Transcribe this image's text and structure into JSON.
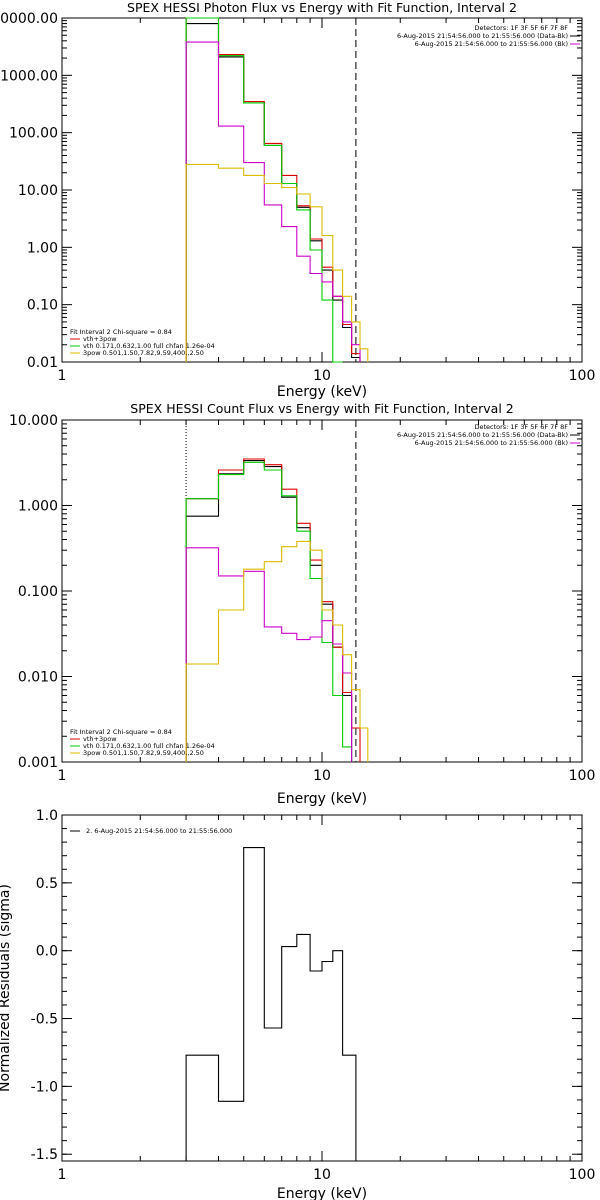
{
  "chart_data": [
    {
      "type": "line",
      "title": "SPEX HESSI Photon Flux vs Energy with Fit Function, Interval 2",
      "xlabel": "Energy (keV)",
      "ylabel": "",
      "x_scale": "log",
      "y_scale": "log",
      "xlim": [
        1,
        100
      ],
      "ylim": [
        0.01,
        10000
      ],
      "x_ticks": [
        "1",
        "10",
        "100"
      ],
      "y_ticks": [
        "0.01",
        "0.10",
        "1.00",
        "10.00",
        "100.00",
        "1000.00",
        "10000.00"
      ],
      "fit_range_lines": [
        3,
        13.5
      ],
      "info_lines": [
        "Detectors: 1F 3F 5F 6F 7F 8F",
        "6-Aug-2015 21:54:56.000 to 21:55:56.000 (Data-Bk)",
        "6-Aug-2015 21:54:56.000 to 21:55:56.000 (Bk)"
      ],
      "legend_lines": [
        "Fit Interval 2   Chi-square = 0.84",
        "vth+3pow",
        "vth 0.171,0.632,1.00  full chfan 1.26e-04",
        "3pow 0.501,1.50,7.82,9.59,400.,2.50"
      ],
      "bin_edges": [
        3,
        4,
        5,
        6,
        7,
        8,
        9,
        10,
        11,
        12,
        13,
        14,
        15
      ],
      "series": [
        {
          "color": "#000000",
          "values": [
            8000,
            2100,
            330,
            60,
            13,
            5,
            1.3,
            0.4,
            0.12,
            0.04,
            0.012,
            null
          ]
        },
        {
          "color": "#dd0000",
          "values": [
            11000,
            2300,
            350,
            65,
            18,
            5.3,
            1.4,
            0.45,
            0.14,
            0.045,
            0.014,
            null
          ]
        },
        {
          "color": "#00cc00",
          "values": [
            11000,
            2200,
            330,
            60,
            13,
            4.5,
            0.9,
            0.12,
            0.01,
            null,
            null,
            null
          ]
        },
        {
          "color": "#cc00cc",
          "values": [
            3800,
            130,
            30,
            5.5,
            2.3,
            0.7,
            0.35,
            0.25,
            0.14,
            0.05,
            0.02,
            null
          ]
        },
        {
          "color": "#ddbb00",
          "values": [
            28,
            24,
            18,
            13,
            11,
            8.5,
            5.1,
            1.6,
            0.4,
            0.14,
            0.05,
            0.017
          ]
        }
      ]
    },
    {
      "type": "line",
      "title": "SPEX HESSI Count Flux vs Energy with Fit Function, Interval 2",
      "xlabel": "Energy (keV)",
      "ylabel": "",
      "x_scale": "log",
      "y_scale": "log",
      "xlim": [
        1,
        100
      ],
      "ylim": [
        0.001,
        10
      ],
      "x_ticks": [
        "1",
        "10",
        "100"
      ],
      "y_ticks": [
        "0.001",
        "0.010",
        "0.100",
        "1.000",
        "10.000"
      ],
      "fit_range_lines": [
        3,
        13.5
      ],
      "info_lines": [
        "Detectors: 1F 3F 5F 6F 7F 8F",
        "6-Aug-2015 21:54:56.000 to 21:55:56.000 (Data-Bk)",
        "6-Aug-2015 21:54:56.000 to 21:55:56.000 (Bk)"
      ],
      "legend_lines": [
        "Fit Interval 2   Chi-square = 0.84",
        "vth+3pow",
        "vth 0.171,0.632,1.00  full chfan 1.26e-04",
        "3pow 0.501,1.50,7.82,9.59,400.,2.50"
      ],
      "bin_edges": [
        3,
        4,
        5,
        6,
        7,
        8,
        9,
        10,
        11,
        12,
        13,
        14,
        15
      ],
      "series": [
        {
          "color": "#000000",
          "values": [
            0.75,
            2.35,
            3.35,
            2.85,
            1.25,
            0.55,
            0.2,
            0.07,
            0.022,
            0.006,
            null,
            null
          ]
        },
        {
          "color": "#dd0000",
          "values": [
            1.2,
            2.6,
            3.5,
            3.0,
            1.55,
            0.62,
            0.23,
            0.075,
            0.022,
            0.0065,
            0.0025,
            null
          ]
        },
        {
          "color": "#00cc00",
          "values": [
            1.2,
            2.3,
            3.2,
            2.6,
            1.3,
            0.5,
            0.14,
            0.025,
            0.006,
            0.0015,
            null,
            null
          ]
        },
        {
          "color": "#cc00cc",
          "values": [
            0.32,
            0.15,
            0.17,
            0.038,
            0.032,
            0.027,
            0.029,
            0.045,
            0.024,
            0.011,
            null,
            null
          ]
        },
        {
          "color": "#ddbb00",
          "values": [
            0.014,
            0.06,
            0.18,
            0.22,
            0.33,
            0.38,
            0.3,
            0.06,
            0.04,
            0.018,
            0.007,
            0.0025
          ]
        }
      ]
    },
    {
      "type": "line",
      "title": "",
      "xlabel": "Energy (keV)",
      "ylabel": "Normalized Residuals (sigma)",
      "x_scale": "log",
      "y_scale": "linear",
      "xlim": [
        1,
        100
      ],
      "ylim": [
        -1.55,
        1.0
      ],
      "x_ticks": [
        "1",
        "10",
        "100"
      ],
      "y_ticks": [
        "-1.5",
        "-1.0",
        "-0.5",
        "0.0",
        "0.5",
        "1.0"
      ],
      "fit_range_lines": [],
      "info_lines": [],
      "legend_lines": [
        "2.  6-Aug-2015 21:54:56.000 to 21:55:56.000"
      ],
      "bin_edges": [
        3,
        4,
        5,
        6,
        7,
        8,
        9,
        10,
        11,
        12,
        13.5
      ],
      "series": [
        {
          "color": "#000000",
          "values": [
            -0.77,
            -1.11,
            0.76,
            -0.57,
            0.03,
            0.12,
            -0.15,
            -0.08,
            0.0,
            -0.77
          ]
        }
      ]
    }
  ]
}
